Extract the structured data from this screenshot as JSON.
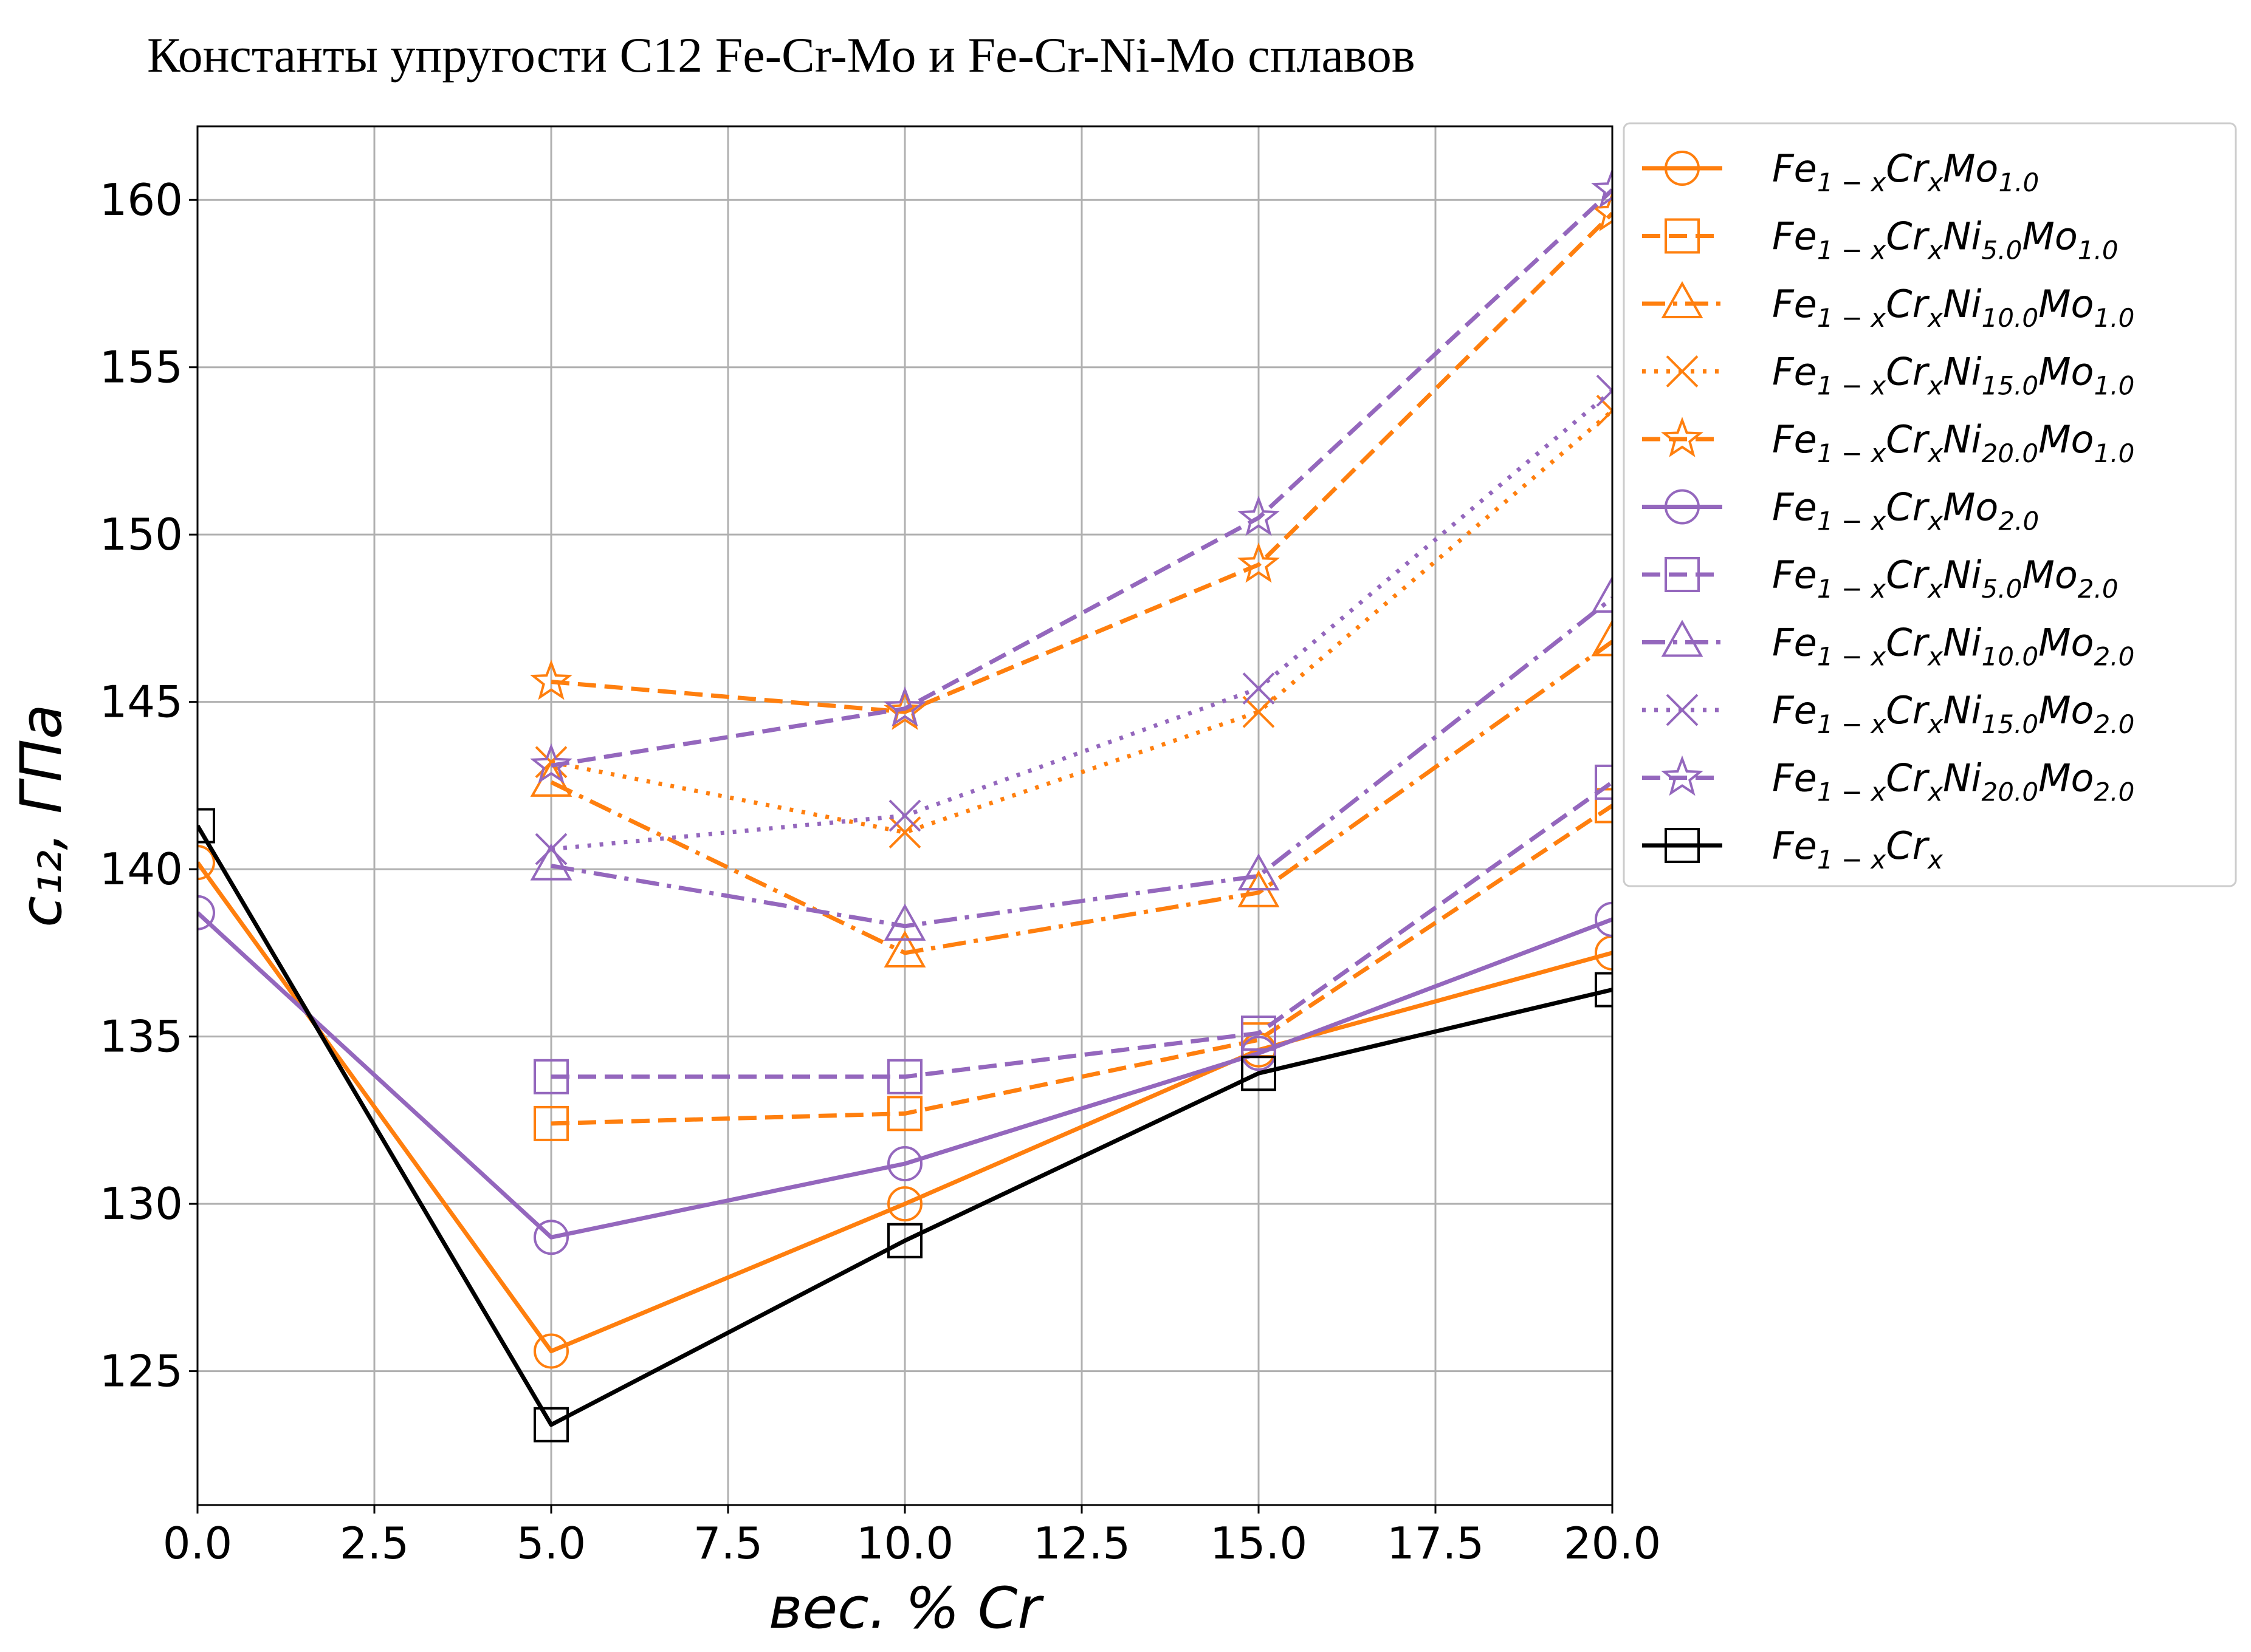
{
  "chart_data": {
    "type": "line",
    "title": "Константы упругости C12 Fe-Cr-Mo и Fe-Cr-Ni-Mo сплавов",
    "xlabel": "вес.  % Cr",
    "ylabel": "c₁₂,  ГПа",
    "xlim": [
      0,
      20
    ],
    "ylim": [
      121.0,
      162.2
    ],
    "xticks": [
      "0.0",
      "2.5",
      "5.0",
      "7.5",
      "10.0",
      "12.5",
      "15.0",
      "17.5",
      "20.0"
    ],
    "xtick_values": [
      0,
      2.5,
      5,
      7.5,
      10,
      12.5,
      15,
      17.5,
      20
    ],
    "yticks": [
      "125",
      "130",
      "135",
      "140",
      "145",
      "150",
      "155",
      "160"
    ],
    "ytick_values": [
      125,
      130,
      135,
      140,
      145,
      150,
      155,
      160
    ],
    "grid": true,
    "legend_position": "outside-right",
    "colors": {
      "orange": "#ff7f0e",
      "purple": "#9467bd",
      "black": "#000000",
      "grid": "#b0b0b0"
    },
    "series": [
      {
        "base": "Fe",
        "sub1": "1 − x",
        "mid": "Cr",
        "sub2": "x",
        "mid2": "Mo",
        "sub3": "1.0",
        "color": "#ff7f0e",
        "dash": "solid",
        "marker": "circle",
        "x": [
          0,
          5,
          10,
          15,
          20
        ],
        "y": [
          140.2,
          125.6,
          130.0,
          134.6,
          137.5
        ]
      },
      {
        "base": "Fe",
        "sub1": "1 − x",
        "mid": "Cr",
        "sub2": "x",
        "mid2": "Ni",
        "sub3": "5.0",
        "mid3": "Mo",
        "sub4": "1.0",
        "color": "#ff7f0e",
        "dash": "dashed",
        "marker": "square",
        "x": [
          5,
          10,
          15,
          20
        ],
        "y": [
          132.4,
          132.7,
          134.9,
          141.9
        ]
      },
      {
        "base": "Fe",
        "sub1": "1 − x",
        "mid": "Cr",
        "sub2": "x",
        "mid2": "Ni",
        "sub3": "10.0",
        "mid3": "Mo",
        "sub4": "1.0",
        "color": "#ff7f0e",
        "dash": "dashdot",
        "marker": "triangle",
        "x": [
          5,
          10,
          15,
          20
        ],
        "y": [
          142.6,
          137.5,
          139.3,
          146.8
        ]
      },
      {
        "base": "Fe",
        "sub1": "1 − x",
        "mid": "Cr",
        "sub2": "x",
        "mid2": "Ni",
        "sub3": "15.0",
        "mid3": "Mo",
        "sub4": "1.0",
        "color": "#ff7f0e",
        "dash": "dotted",
        "marker": "x",
        "x": [
          5,
          10,
          15,
          20
        ],
        "y": [
          143.2,
          141.1,
          144.7,
          153.7
        ]
      },
      {
        "base": "Fe",
        "sub1": "1 − x",
        "mid": "Cr",
        "sub2": "x",
        "mid2": "Ni",
        "sub3": "20.0",
        "mid3": "Mo",
        "sub4": "1.0",
        "color": "#ff7f0e",
        "dash": "dashed",
        "marker": "star",
        "x": [
          5,
          10,
          15,
          20
        ],
        "y": [
          145.6,
          144.7,
          149.1,
          159.6
        ]
      },
      {
        "base": "Fe",
        "sub1": "1 − x",
        "mid": "Cr",
        "sub2": "x",
        "mid2": "Mo",
        "sub3": "2.0",
        "color": "#9467bd",
        "dash": "solid",
        "marker": "circle",
        "x": [
          0,
          5,
          10,
          15,
          20
        ],
        "y": [
          138.7,
          129.0,
          131.2,
          134.5,
          138.5
        ]
      },
      {
        "base": "Fe",
        "sub1": "1 − x",
        "mid": "Cr",
        "sub2": "x",
        "mid2": "Ni",
        "sub3": "5.0",
        "mid3": "Mo",
        "sub4": "2.0",
        "color": "#9467bd",
        "dash": "dashed",
        "marker": "square",
        "x": [
          5,
          10,
          15,
          20
        ],
        "y": [
          133.8,
          133.8,
          135.1,
          142.6
        ]
      },
      {
        "base": "Fe",
        "sub1": "1 − x",
        "mid": "Cr",
        "sub2": "x",
        "mid2": "Ni",
        "sub3": "10.0",
        "mid3": "Mo",
        "sub4": "2.0",
        "color": "#9467bd",
        "dash": "dashdot",
        "marker": "triangle",
        "x": [
          5,
          10,
          15,
          20
        ],
        "y": [
          140.1,
          138.3,
          139.8,
          148.1
        ]
      },
      {
        "base": "Fe",
        "sub1": "1 − x",
        "mid": "Cr",
        "sub2": "x",
        "mid2": "Ni",
        "sub3": "15.0",
        "mid3": "Mo",
        "sub4": "2.0",
        "color": "#9467bd",
        "dash": "dotted",
        "marker": "x",
        "x": [
          5,
          10,
          15,
          20
        ],
        "y": [
          140.6,
          141.6,
          145.4,
          154.3
        ]
      },
      {
        "base": "Fe",
        "sub1": "1 − x",
        "mid": "Cr",
        "sub2": "x",
        "mid2": "Ni",
        "sub3": "20.0",
        "mid3": "Mo",
        "sub4": "2.0",
        "color": "#9467bd",
        "dash": "dashed",
        "marker": "star",
        "x": [
          5,
          10,
          15,
          20
        ],
        "y": [
          143.1,
          144.8,
          150.5,
          160.3
        ]
      },
      {
        "base": "Fe",
        "sub1": "1 − x",
        "mid": "Cr",
        "sub2": "x",
        "color": "#000000",
        "dash": "solid",
        "marker": "square",
        "x": [
          0,
          5,
          10,
          15,
          20
        ],
        "y": [
          141.3,
          123.4,
          128.9,
          133.9,
          136.4
        ]
      }
    ]
  }
}
